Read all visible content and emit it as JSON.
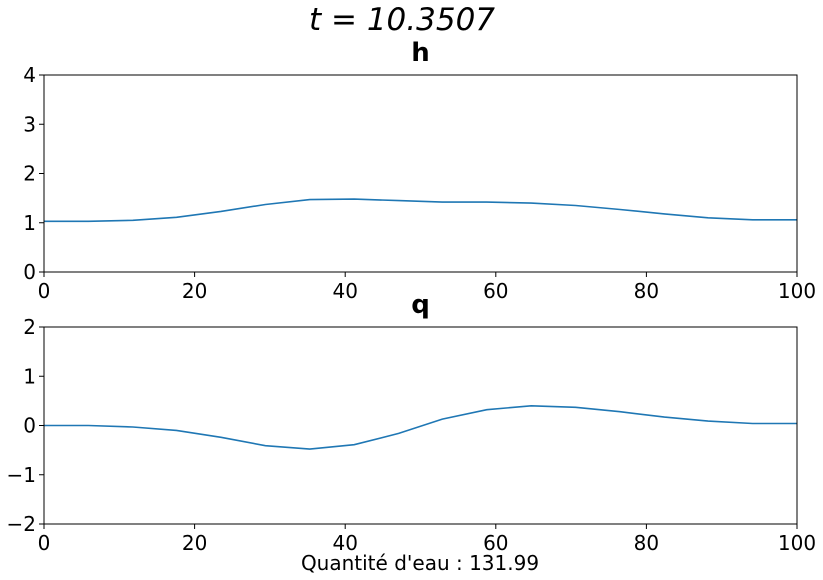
{
  "suptitle": "t = 10.3507",
  "xlabel": "Quantité d'eau : 131.99",
  "chart_data": [
    {
      "type": "line",
      "title": "h",
      "xlim": [
        0,
        100
      ],
      "ylim": [
        0,
        4
      ],
      "xticks": [
        0,
        20,
        40,
        60,
        80,
        100
      ],
      "yticks": [
        0,
        1,
        2,
        3,
        4
      ],
      "xtick_labels": [
        "0",
        "20",
        "40",
        "60",
        "80",
        "100"
      ],
      "ytick_labels": [
        "0",
        "1",
        "2",
        "3",
        "4"
      ],
      "grid": false,
      "color": "#1f77b4",
      "x": [
        0,
        5.9,
        11.8,
        17.6,
        23.5,
        29.4,
        35.3,
        41.2,
        47.1,
        52.9,
        58.8,
        64.7,
        70.6,
        76.5,
        82.4,
        88.2,
        94.1,
        100
      ],
      "y": [
        1.03,
        1.03,
        1.05,
        1.11,
        1.23,
        1.37,
        1.47,
        1.48,
        1.45,
        1.42,
        1.42,
        1.4,
        1.35,
        1.27,
        1.18,
        1.1,
        1.06,
        1.06
      ]
    },
    {
      "type": "line",
      "title": "q",
      "xlim": [
        0,
        100
      ],
      "ylim": [
        -2,
        2
      ],
      "xticks": [
        0,
        20,
        40,
        60,
        80,
        100
      ],
      "yticks": [
        -2,
        -1,
        0,
        1,
        2
      ],
      "xtick_labels": [
        "0",
        "20",
        "40",
        "60",
        "80",
        "100"
      ],
      "ytick_labels": [
        "−2",
        "−1",
        "0",
        "1",
        "2"
      ],
      "grid": false,
      "color": "#1f77b4",
      "x": [
        0,
        5.9,
        11.8,
        17.6,
        23.5,
        29.4,
        35.3,
        41.2,
        47.1,
        52.9,
        58.8,
        64.7,
        70.6,
        76.5,
        82.4,
        88.2,
        94.1,
        100
      ],
      "y": [
        0.0,
        0.0,
        -0.03,
        -0.1,
        -0.24,
        -0.41,
        -0.48,
        -0.39,
        -0.16,
        0.13,
        0.32,
        0.4,
        0.37,
        0.28,
        0.17,
        0.09,
        0.04,
        0.04
      ]
    }
  ]
}
